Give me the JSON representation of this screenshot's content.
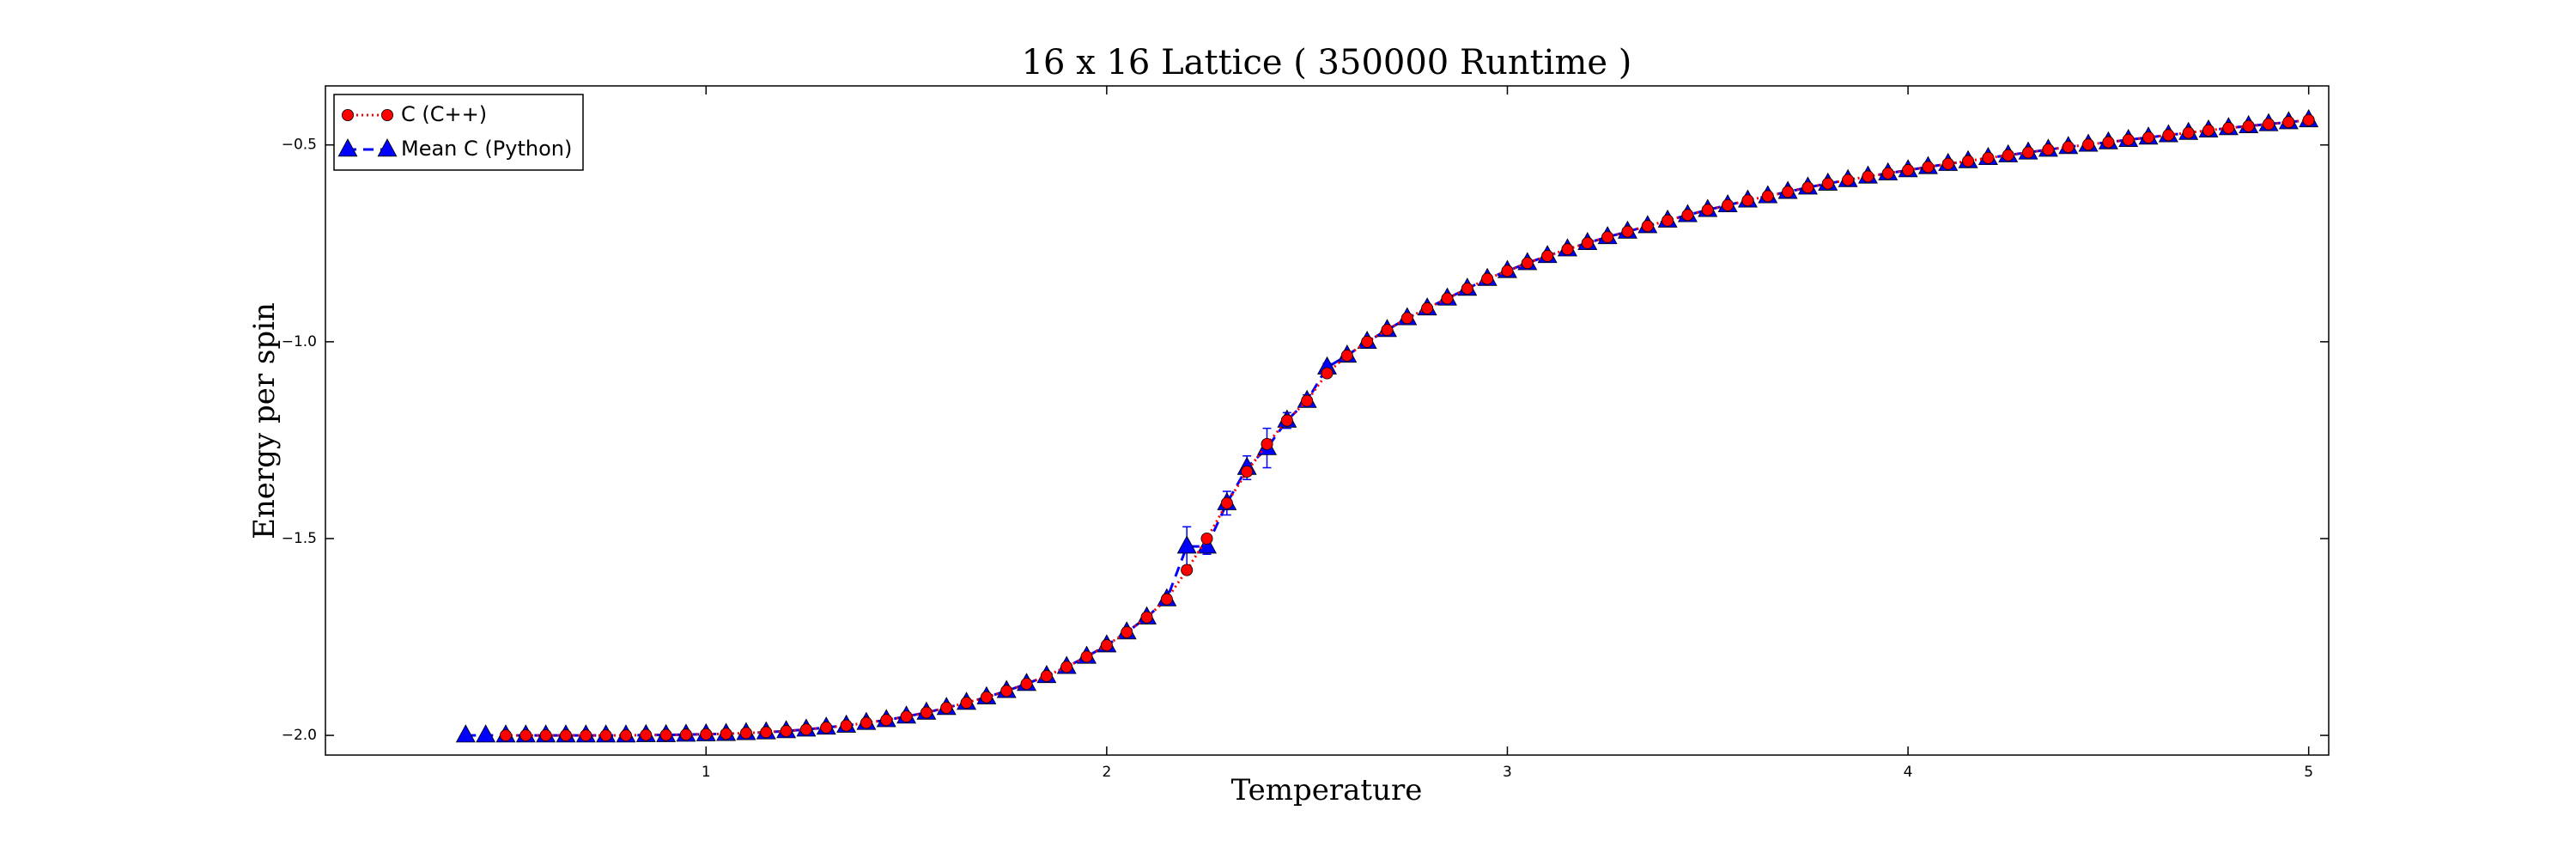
{
  "chart_data": {
    "type": "line",
    "title": "16 x 16 Lattice ( 350000 Runtime )",
    "xlabel": "Temperature",
    "ylabel": "Energy per spin",
    "xlim": [
      0.05,
      5.05
    ],
    "ylim": [
      -2.05,
      -0.35
    ],
    "xticks": [
      1,
      2,
      3,
      4,
      5
    ],
    "yticks": [
      {
        "value": -2.0,
        "label": "−2.0"
      },
      {
        "value": -1.5,
        "label": "−1.5"
      },
      {
        "value": -1.0,
        "label": "−1.0"
      },
      {
        "value": -0.5,
        "label": "−0.5"
      }
    ],
    "legend": "upper left",
    "series": [
      {
        "name": "C (C++)",
        "color": "#ff0000",
        "marker": "circle",
        "x": [
          0.5,
          0.55,
          0.6,
          0.65,
          0.7,
          0.75,
          0.8,
          0.85,
          0.9,
          0.95,
          1.0,
          1.05,
          1.1,
          1.15,
          1.2,
          1.25,
          1.3,
          1.35,
          1.4,
          1.45,
          1.5,
          1.55,
          1.6,
          1.65,
          1.7,
          1.75,
          1.8,
          1.85,
          1.9,
          1.95,
          2.0,
          2.05,
          2.1,
          2.15,
          2.2,
          2.25,
          2.3,
          2.35,
          2.4,
          2.45,
          2.5,
          2.55,
          2.6,
          2.65,
          2.7,
          2.75,
          2.8,
          2.85,
          2.9,
          2.95,
          3.0,
          3.05,
          3.1,
          3.15,
          3.2,
          3.25,
          3.3,
          3.35,
          3.4,
          3.45,
          3.5,
          3.55,
          3.6,
          3.65,
          3.7,
          3.75,
          3.8,
          3.85,
          3.9,
          3.95,
          4.0,
          4.05,
          4.1,
          4.15,
          4.2,
          4.25,
          4.3,
          4.35,
          4.4,
          4.45,
          4.5,
          4.55,
          4.6,
          4.65,
          4.7,
          4.75,
          4.8,
          4.85,
          4.9,
          4.95,
          5.0
        ],
        "values": [
          -2.0,
          -2.0,
          -2.0,
          -2.0,
          -2.0,
          -2.0,
          -2.0,
          -1.999,
          -1.999,
          -1.998,
          -1.997,
          -1.996,
          -1.994,
          -1.992,
          -1.989,
          -1.985,
          -1.98,
          -1.975,
          -1.968,
          -1.961,
          -1.952,
          -1.942,
          -1.93,
          -1.917,
          -1.903,
          -1.887,
          -1.869,
          -1.849,
          -1.826,
          -1.8,
          -1.771,
          -1.738,
          -1.7,
          -1.654,
          -1.58,
          -1.5,
          -1.41,
          -1.33,
          -1.26,
          -1.2,
          -1.15,
          -1.08,
          -1.035,
          -1.0,
          -0.97,
          -0.94,
          -0.915,
          -0.89,
          -0.865,
          -0.84,
          -0.82,
          -0.8,
          -0.782,
          -0.765,
          -0.749,
          -0.734,
          -0.72,
          -0.706,
          -0.692,
          -0.678,
          -0.665,
          -0.653,
          -0.641,
          -0.63,
          -0.619,
          -0.608,
          -0.598,
          -0.589,
          -0.58,
          -0.572,
          -0.564,
          -0.556,
          -0.548,
          -0.541,
          -0.533,
          -0.526,
          -0.519,
          -0.512,
          -0.505,
          -0.499,
          -0.493,
          -0.487,
          -0.481,
          -0.475,
          -0.469,
          -0.463,
          -0.457,
          -0.452,
          -0.447,
          -0.442,
          -0.437
        ]
      },
      {
        "name": "Mean C (Python)",
        "color": "#0000ff",
        "marker": "triangle",
        "x": [
          0.4,
          0.45,
          0.5,
          0.55,
          0.6,
          0.65,
          0.7,
          0.75,
          0.8,
          0.85,
          0.9,
          0.95,
          1.0,
          1.05,
          1.1,
          1.15,
          1.2,
          1.25,
          1.3,
          1.35,
          1.4,
          1.45,
          1.5,
          1.55,
          1.6,
          1.65,
          1.7,
          1.75,
          1.8,
          1.85,
          1.9,
          1.95,
          2.0,
          2.05,
          2.1,
          2.15,
          2.2,
          2.25,
          2.3,
          2.35,
          2.4,
          2.45,
          2.5,
          2.55,
          2.6,
          2.65,
          2.7,
          2.75,
          2.8,
          2.85,
          2.9,
          2.95,
          3.0,
          3.05,
          3.1,
          3.15,
          3.2,
          3.25,
          3.3,
          3.35,
          3.4,
          3.45,
          3.5,
          3.55,
          3.6,
          3.65,
          3.7,
          3.75,
          3.8,
          3.85,
          3.9,
          3.95,
          4.0,
          4.05,
          4.1,
          4.15,
          4.2,
          4.25,
          4.3,
          4.35,
          4.4,
          4.45,
          4.5,
          4.55,
          4.6,
          4.65,
          4.7,
          4.75,
          4.8,
          4.85,
          4.9,
          4.95,
          5.0
        ],
        "values": [
          -2.0,
          -2.0,
          -2.0,
          -2.0,
          -2.0,
          -2.0,
          -2.0,
          -2.0,
          -2.0,
          -1.999,
          -1.999,
          -1.998,
          -1.997,
          -1.996,
          -1.994,
          -1.992,
          -1.989,
          -1.985,
          -1.98,
          -1.975,
          -1.968,
          -1.961,
          -1.952,
          -1.942,
          -1.93,
          -1.917,
          -1.903,
          -1.887,
          -1.869,
          -1.849,
          -1.826,
          -1.8,
          -1.771,
          -1.738,
          -1.7,
          -1.654,
          -1.52,
          -1.52,
          -1.41,
          -1.32,
          -1.27,
          -1.2,
          -1.15,
          -1.065,
          -1.035,
          -1.0,
          -0.97,
          -0.94,
          -0.915,
          -0.89,
          -0.865,
          -0.84,
          -0.82,
          -0.8,
          -0.782,
          -0.765,
          -0.749,
          -0.734,
          -0.72,
          -0.706,
          -0.692,
          -0.678,
          -0.665,
          -0.653,
          -0.641,
          -0.63,
          -0.619,
          -0.608,
          -0.598,
          -0.589,
          -0.58,
          -0.572,
          -0.564,
          -0.556,
          -0.548,
          -0.541,
          -0.533,
          -0.526,
          -0.519,
          -0.512,
          -0.505,
          -0.499,
          -0.493,
          -0.487,
          -0.481,
          -0.475,
          -0.469,
          -0.463,
          -0.457,
          -0.452,
          -0.447,
          -0.442,
          -0.437
        ],
        "errors": [
          0.001,
          0.001,
          0.001,
          0.001,
          0.001,
          0.001,
          0.001,
          0.001,
          0.001,
          0.001,
          0.001,
          0.001,
          0.001,
          0.001,
          0.001,
          0.001,
          0.001,
          0.001,
          0.001,
          0.001,
          0.001,
          0.001,
          0.003,
          0.003,
          0.003,
          0.003,
          0.003,
          0.003,
          0.003,
          0.003,
          0.003,
          0.003,
          0.01,
          0.01,
          0.01,
          0.01,
          0.05,
          0.02,
          0.03,
          0.03,
          0.05,
          0.02,
          0.015,
          0.01,
          0.008,
          0.006,
          0.005,
          0.005,
          0.005,
          0.005,
          0.005,
          0.005,
          0.005,
          0.003,
          0.003,
          0.003,
          0.003,
          0.003,
          0.003,
          0.003,
          0.003,
          0.003,
          0.003,
          0.003,
          0.003,
          0.003,
          0.003,
          0.003,
          0.003,
          0.003,
          0.003,
          0.003,
          0.003,
          0.003,
          0.003,
          0.003,
          0.003,
          0.003,
          0.003,
          0.003,
          0.003,
          0.003,
          0.003,
          0.003,
          0.003,
          0.003,
          0.003,
          0.003,
          0.003,
          0.003,
          0.003,
          0.003,
          0.003
        ]
      }
    ]
  }
}
